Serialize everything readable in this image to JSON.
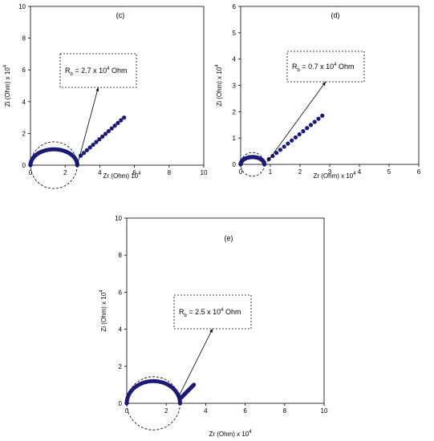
{
  "chart_data": [
    {
      "type": "scatter",
      "panel_label": "(c)",
      "xlabel": "Zr (Ohm) 10",
      "xlabel_sup": "4",
      "ylabel": "Zi (Ohm) x 10",
      "ylabel_sup": "4",
      "xlim": [
        0,
        10
      ],
      "ylim": [
        0,
        10
      ],
      "xticks": [
        0,
        2,
        4,
        6,
        8,
        10
      ],
      "yticks": [
        0,
        2,
        4,
        6,
        8,
        10
      ],
      "annotation": {
        "pre": "R",
        "sub": "b",
        "mid": " = 2.7 x 10",
        "sup": "4",
        "post": " Ohm",
        "points_to": [
          2.7,
          0
        ]
      },
      "semicircle_center": [
        1.35,
        0
      ],
      "semicircle_radius": 1.35,
      "semicircle_peak": 1.0,
      "tail_start": [
        2.9,
        0.6
      ],
      "tail_end": [
        5.4,
        3.0
      ],
      "color": "#1a1a7a"
    },
    {
      "type": "scatter",
      "panel_label": "(d)",
      "xlabel": "Zr (Ohm) x 10",
      "xlabel_sup": "4",
      "ylabel": "Zi (Ohm) x 10",
      "ylabel_sup": "4",
      "xlim": [
        0,
        6
      ],
      "ylim": [
        0,
        6
      ],
      "xticks": [
        0,
        1,
        2,
        3,
        4,
        5,
        6
      ],
      "yticks": [
        0,
        1,
        2,
        3,
        4,
        5,
        6
      ],
      "annotation": {
        "pre": "R",
        "sub": "b",
        "mid": " = 0.7 x 10",
        "sup": "4",
        "post": " Ohm",
        "points_to": [
          0.9,
          0.1
        ]
      },
      "semicircle_center": [
        0.4,
        0
      ],
      "semicircle_radius": 0.4,
      "semicircle_peak": 0.28,
      "tail_start": [
        0.95,
        0.2
      ],
      "tail_end": [
        2.75,
        1.85
      ],
      "color": "#1a1a7a"
    },
    {
      "type": "scatter",
      "panel_label": "(e)",
      "xlabel": "Zr (Ohm) x 10",
      "xlabel_sup": "4",
      "ylabel": "Zi (Ohm) x 10",
      "ylabel_sup": "4",
      "xlim": [
        0,
        10
      ],
      "ylim": [
        0,
        10
      ],
      "xticks": [
        0,
        2,
        4,
        6,
        8,
        10
      ],
      "yticks": [
        0,
        2,
        4,
        6,
        8,
        10
      ],
      "annotation": {
        "pre": "R",
        "sub": "b",
        "mid": " = 2.5 x 10",
        "sup": "4",
        "post": " Ohm",
        "points_to": [
          2.6,
          0.3
        ]
      },
      "semicircle_center": [
        1.35,
        0
      ],
      "semicircle_radius": 1.35,
      "semicircle_peak": 1.2,
      "tail_start": [
        2.75,
        0.3
      ],
      "tail_end": [
        3.4,
        1.0
      ],
      "color": "#1a1a7a"
    }
  ]
}
